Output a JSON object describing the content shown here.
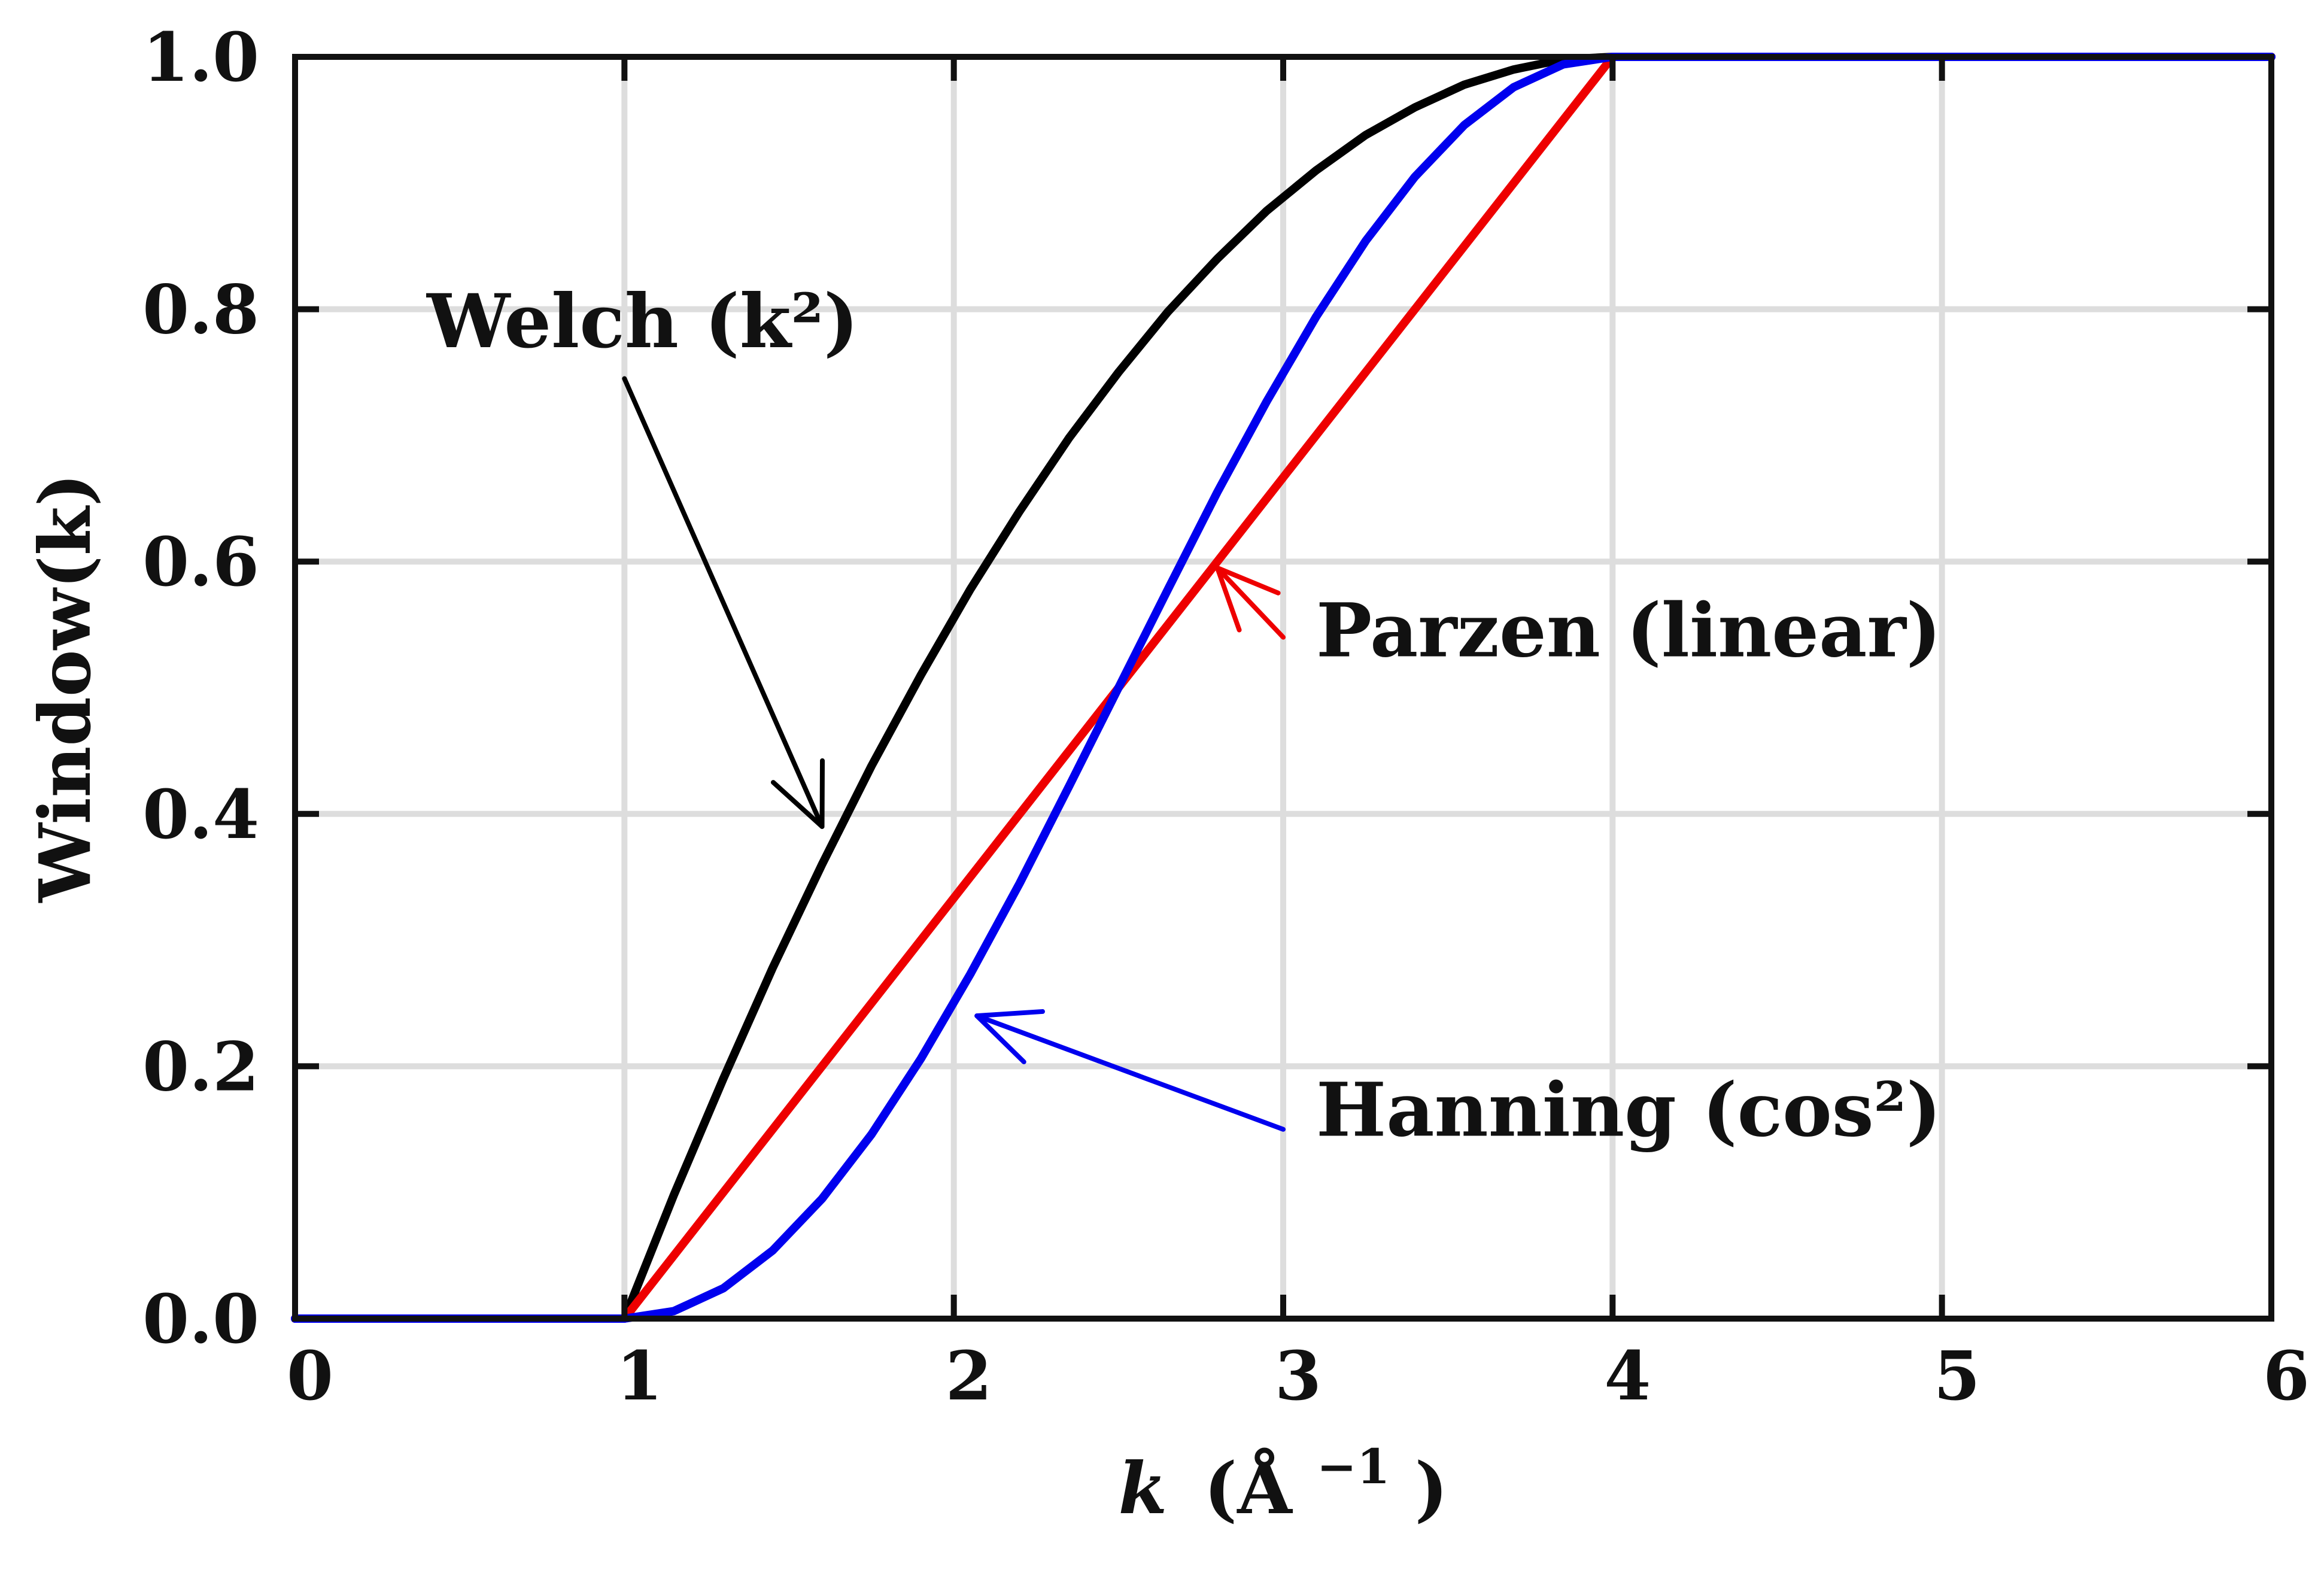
{
  "chart_data": {
    "type": "line",
    "title": "",
    "xlabel": "k",
    "xlabel_unit": "(Å",
    "xlabel_unit_exp": "−1",
    "xlabel_unit_close": ")",
    "ylabel": "Window(k)",
    "xlim": [
      0,
      6
    ],
    "ylim": [
      0,
      1
    ],
    "xticks": [
      "0",
      "1",
      "2",
      "3",
      "4",
      "5",
      "6"
    ],
    "yticks": [
      "0.0",
      "0.2",
      "0.4",
      "0.6",
      "0.8",
      "1.0"
    ],
    "grid": true,
    "series": [
      {
        "key": "welch",
        "color": "#000000",
        "x": [
          0,
          1,
          1.15,
          1.3,
          1.45,
          1.6,
          1.75,
          1.9,
          2.05,
          2.2,
          2.35,
          2.5,
          2.65,
          2.8,
          2.95,
          3.1,
          3.25,
          3.4,
          3.55,
          3.7,
          3.85,
          4,
          6
        ],
        "y": [
          0,
          0,
          0.098,
          0.19,
          0.278,
          0.36,
          0.438,
          0.51,
          0.578,
          0.64,
          0.698,
          0.75,
          0.798,
          0.84,
          0.878,
          0.91,
          0.938,
          0.96,
          0.978,
          0.99,
          0.998,
          1,
          1
        ]
      },
      {
        "key": "parzen",
        "color": "#ee0000",
        "x": [
          0,
          1,
          4,
          6
        ],
        "y": [
          0,
          0,
          1,
          1
        ]
      },
      {
        "key": "hanning",
        "color": "#0000ee",
        "x": [
          0,
          1,
          1.15,
          1.3,
          1.45,
          1.6,
          1.75,
          1.9,
          2.05,
          2.2,
          2.35,
          2.5,
          2.65,
          2.8,
          2.95,
          3.1,
          3.25,
          3.4,
          3.55,
          3.7,
          3.85,
          4,
          6
        ],
        "y": [
          0,
          0,
          0.006,
          0.024,
          0.054,
          0.095,
          0.146,
          0.206,
          0.273,
          0.345,
          0.422,
          0.5,
          0.578,
          0.655,
          0.727,
          0.794,
          0.854,
          0.905,
          0.946,
          0.976,
          0.994,
          1,
          1
        ]
      }
    ],
    "annotations": [
      {
        "key": "welch",
        "text": "Welch (k²)",
        "color": "#000000",
        "text_at": [
          0.4,
          0.77
        ],
        "arrow_from": [
          1.0,
          0.745
        ],
        "arrow_to": [
          1.6,
          0.39
        ]
      },
      {
        "key": "parzen",
        "text": "Parzen (linear)",
        "color": "#ee0000",
        "text_at": [
          3.1,
          0.525
        ],
        "arrow_from": [
          3.0,
          0.54
        ],
        "arrow_to": [
          2.8,
          0.595
        ]
      },
      {
        "key": "hanning",
        "text": "Hanning (cos²)",
        "color": "#0000ee",
        "text_at": [
          3.1,
          0.145
        ],
        "arrow_from": [
          3.0,
          0.15
        ],
        "arrow_to": [
          2.07,
          0.24
        ]
      }
    ]
  }
}
